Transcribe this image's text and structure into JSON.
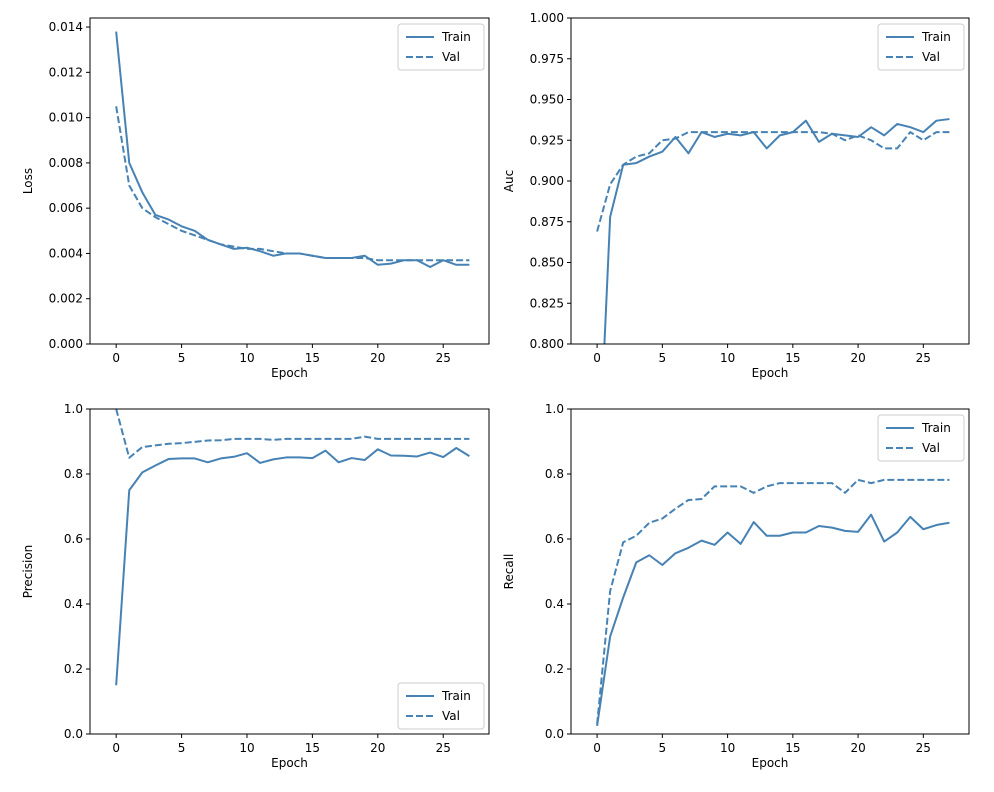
{
  "chart_data": [
    {
      "type": "line",
      "xlabel": "Epoch",
      "ylabel": "Loss",
      "xlim": [
        -2,
        28.5
      ],
      "ylim": [
        0,
        0.0144
      ],
      "xticks": [
        0,
        5,
        10,
        15,
        20,
        25
      ],
      "yticks": [
        0.0,
        0.002,
        0.004,
        0.006,
        0.008,
        0.01,
        0.012,
        0.014
      ],
      "ytick_labels": [
        "0.000",
        "0.002",
        "0.004",
        "0.006",
        "0.008",
        "0.010",
        "0.012",
        "0.014"
      ],
      "legend_position": "top-right",
      "color": "#4682b4",
      "x": [
        0,
        1,
        2,
        3,
        4,
        5,
        6,
        7,
        8,
        9,
        10,
        11,
        12,
        13,
        14,
        15,
        16,
        17,
        18,
        19,
        20,
        21,
        22,
        23,
        24,
        25,
        26,
        27
      ],
      "series": [
        {
          "name": "Train",
          "style": "solid",
          "values": [
            0.0138,
            0.008,
            0.0067,
            0.0057,
            0.0055,
            0.0052,
            0.005,
            0.0046,
            0.0044,
            0.0042,
            0.00425,
            0.0041,
            0.0039,
            0.004,
            0.004,
            0.0039,
            0.0038,
            0.0038,
            0.0038,
            0.0039,
            0.0035,
            0.00355,
            0.0037,
            0.0037,
            0.0034,
            0.0037,
            0.0035,
            0.0035
          ]
        },
        {
          "name": "Val",
          "style": "dashed",
          "values": [
            0.0105,
            0.007,
            0.006,
            0.0056,
            0.0053,
            0.005,
            0.0048,
            0.0046,
            0.0044,
            0.0043,
            0.0042,
            0.0042,
            0.0041,
            0.004,
            0.004,
            0.0039,
            0.0038,
            0.0038,
            0.0038,
            0.0038,
            0.0037,
            0.0037,
            0.0037,
            0.0037,
            0.0037,
            0.0037,
            0.0037,
            0.0037
          ]
        }
      ]
    },
    {
      "type": "line",
      "xlabel": "Epoch",
      "ylabel": "Auc",
      "xlim": [
        -2,
        28.5
      ],
      "ylim": [
        0.8,
        1.0
      ],
      "xticks": [
        0,
        5,
        10,
        15,
        20,
        25
      ],
      "yticks": [
        0.8,
        0.825,
        0.85,
        0.875,
        0.9,
        0.925,
        0.95,
        0.975,
        1.0
      ],
      "ytick_labels": [
        "0.800",
        "0.825",
        "0.850",
        "0.875",
        "0.900",
        "0.925",
        "0.950",
        "0.975",
        "1.000"
      ],
      "legend_position": "top-right",
      "color": "#4682b4",
      "x": [
        0,
        1,
        2,
        3,
        4,
        5,
        6,
        7,
        8,
        9,
        10,
        11,
        12,
        13,
        14,
        15,
        16,
        17,
        18,
        19,
        20,
        21,
        22,
        23,
        24,
        25,
        26,
        27
      ],
      "series": [
        {
          "name": "Train",
          "style": "solid",
          "values": [
            0.7,
            0.878,
            0.91,
            0.911,
            0.915,
            0.918,
            0.927,
            0.917,
            0.93,
            0.927,
            0.929,
            0.928,
            0.93,
            0.92,
            0.928,
            0.93,
            0.937,
            0.924,
            0.929,
            0.928,
            0.927,
            0.933,
            0.928,
            0.935,
            0.933,
            0.93,
            0.937,
            0.938
          ]
        },
        {
          "name": "Val",
          "style": "dashed",
          "values": [
            0.869,
            0.898,
            0.91,
            0.915,
            0.917,
            0.925,
            0.926,
            0.93,
            0.93,
            0.93,
            0.93,
            0.93,
            0.93,
            0.93,
            0.93,
            0.93,
            0.93,
            0.93,
            0.929,
            0.925,
            0.928,
            0.925,
            0.92,
            0.92,
            0.93,
            0.925,
            0.93,
            0.93
          ]
        }
      ]
    },
    {
      "type": "line",
      "xlabel": "Epoch",
      "ylabel": "Precision",
      "xlim": [
        -2,
        28.5
      ],
      "ylim": [
        0.0,
        1.0
      ],
      "xticks": [
        0,
        5,
        10,
        15,
        20,
        25
      ],
      "yticks": [
        0.0,
        0.2,
        0.4,
        0.6,
        0.8,
        1.0
      ],
      "ytick_labels": [
        "0.0",
        "0.2",
        "0.4",
        "0.6",
        "0.8",
        "1.0"
      ],
      "legend_position": "bottom-right",
      "color": "#4682b4",
      "x": [
        0,
        1,
        2,
        3,
        4,
        5,
        6,
        7,
        8,
        9,
        10,
        11,
        12,
        13,
        14,
        15,
        16,
        17,
        18,
        19,
        20,
        21,
        22,
        23,
        24,
        25,
        26,
        27
      ],
      "series": [
        {
          "name": "Train",
          "style": "solid",
          "values": [
            0.15,
            0.75,
            0.805,
            0.826,
            0.846,
            0.848,
            0.848,
            0.836,
            0.848,
            0.853,
            0.864,
            0.834,
            0.845,
            0.851,
            0.851,
            0.849,
            0.872,
            0.836,
            0.849,
            0.843,
            0.876,
            0.857,
            0.856,
            0.854,
            0.866,
            0.852,
            0.88,
            0.855
          ]
        },
        {
          "name": "Val",
          "style": "dashed",
          "values": [
            1.0,
            0.85,
            0.883,
            0.888,
            0.893,
            0.895,
            0.899,
            0.903,
            0.904,
            0.908,
            0.908,
            0.908,
            0.905,
            0.908,
            0.908,
            0.908,
            0.908,
            0.908,
            0.908,
            0.915,
            0.908,
            0.908,
            0.908,
            0.908,
            0.908,
            0.908,
            0.908,
            0.908
          ]
        }
      ]
    },
    {
      "type": "line",
      "xlabel": "Epoch",
      "ylabel": "Recall",
      "xlim": [
        -2,
        28.5
      ],
      "ylim": [
        0.0,
        1.0
      ],
      "xticks": [
        0,
        5,
        10,
        15,
        20,
        25
      ],
      "yticks": [
        0.0,
        0.2,
        0.4,
        0.6,
        0.8,
        1.0
      ],
      "ytick_labels": [
        "0.0",
        "0.2",
        "0.4",
        "0.6",
        "0.8",
        "1.0"
      ],
      "legend_position": "top-right",
      "color": "#4682b4",
      "x": [
        0,
        1,
        2,
        3,
        4,
        5,
        6,
        7,
        8,
        9,
        10,
        11,
        12,
        13,
        14,
        15,
        16,
        17,
        18,
        19,
        20,
        21,
        22,
        23,
        24,
        25,
        26,
        27
      ],
      "series": [
        {
          "name": "Train",
          "style": "solid",
          "values": [
            0.025,
            0.3,
            0.42,
            0.528,
            0.55,
            0.52,
            0.556,
            0.573,
            0.595,
            0.582,
            0.62,
            0.585,
            0.652,
            0.61,
            0.61,
            0.62,
            0.62,
            0.64,
            0.635,
            0.625,
            0.622,
            0.675,
            0.592,
            0.62,
            0.668,
            0.63,
            0.643,
            0.65
          ]
        },
        {
          "name": "Val",
          "style": "dashed",
          "values": [
            0.03,
            0.44,
            0.59,
            0.61,
            0.65,
            0.663,
            0.693,
            0.72,
            0.723,
            0.762,
            0.762,
            0.762,
            0.742,
            0.762,
            0.772,
            0.772,
            0.772,
            0.772,
            0.772,
            0.742,
            0.782,
            0.772,
            0.782,
            0.782,
            0.782,
            0.782,
            0.782,
            0.782
          ]
        }
      ]
    }
  ]
}
